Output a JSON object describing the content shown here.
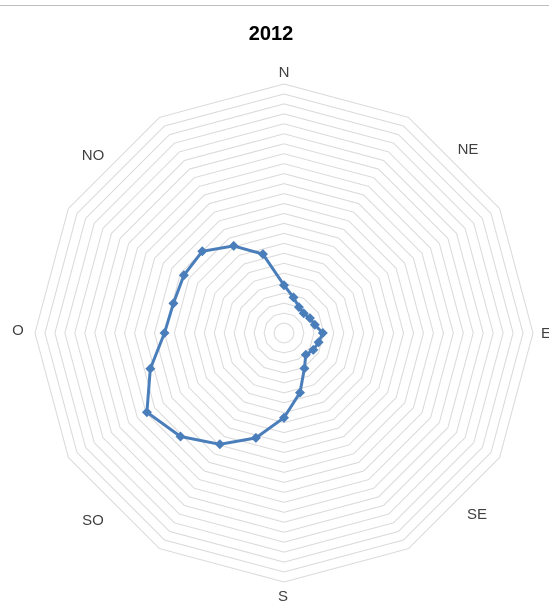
{
  "chart_data": {
    "type": "radar",
    "title": "2012",
    "categories": [
      "N",
      "",
      "",
      "NE",
      "",
      "",
      "E",
      "",
      "",
      "SE",
      "",
      "",
      "S",
      "",
      "",
      "SO",
      "",
      "",
      "O",
      "",
      "",
      "NO",
      "",
      ""
    ],
    "rlim": [
      0,
      25
    ],
    "grid": true,
    "legend": "none",
    "series": [
      {
        "values": [
          4.8,
          3.7,
          3.0,
          2.8,
          3.0,
          3.2,
          3.9,
          3.6,
          3.4,
          3.1,
          4.1,
          6.2,
          8.5,
          10.9,
          12.9,
          14.7,
          15.9,
          13.9,
          12.0,
          11.5,
          11.6,
          11.6,
          10.1,
          8.2
        ],
        "color": "#4a7ebb"
      }
    ]
  },
  "axis_labels": {
    "n": "N",
    "ne": "NE",
    "e": "E",
    "se": "SE",
    "s": "S",
    "so": "SO",
    "o": "O",
    "no": "NO"
  },
  "colors": {
    "series": "#4a7ebb",
    "grid": "#d9d9d9"
  }
}
